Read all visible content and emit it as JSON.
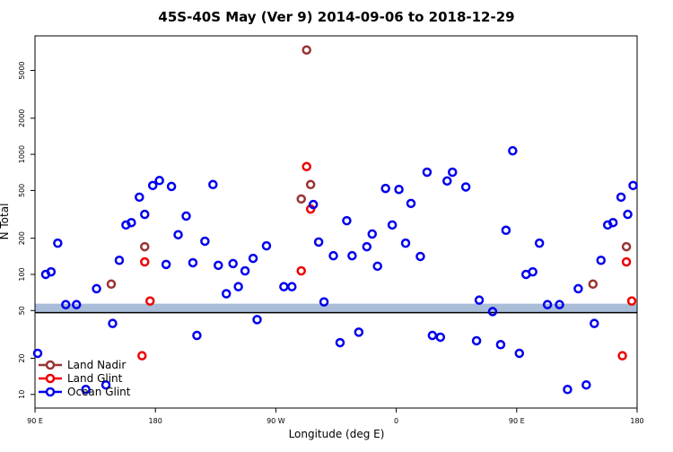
{
  "chart_data": {
    "type": "scatter",
    "title": "45S-40S May (Ver 9)   2014-09-06 to 2018-12-29",
    "x_label": "Longitude (deg E)",
    "y_label": "N Total",
    "xlim": [
      90,
      540
    ],
    "ylim": [
      7.7,
      9700
    ],
    "log_y": true,
    "xticks": [
      {
        "value": 90,
        "label": "90 E"
      },
      {
        "value": 180,
        "label": "180"
      },
      {
        "value": 270,
        "label": "90 W"
      },
      {
        "value": 360,
        "label": "0"
      },
      {
        "value": 450,
        "label": "90 E"
      },
      {
        "value": 540,
        "label": "180"
      }
    ],
    "yticks": [
      10,
      20,
      50,
      100,
      200,
      500,
      1000,
      2000,
      5000
    ],
    "band": [
      48,
      57
    ],
    "band_color": "#a9bcd8",
    "legend": "bottom-left",
    "series": [
      {
        "name": "Land Nadir",
        "color": "#993333",
        "x": [
          147,
          172,
          289,
          293,
          296,
          507,
          532
        ],
        "values": [
          83,
          170,
          425,
          7400,
          560,
          83,
          170
        ]
      },
      {
        "name": "Land Glint",
        "color": "#ee0000",
        "x": [
          170,
          172,
          176,
          289,
          293,
          296,
          529,
          532,
          536
        ],
        "values": [
          21,
          127,
          60,
          107,
          790,
          350,
          21,
          127,
          60
        ]
      },
      {
        "name": "Ocean Glint",
        "color": "#0000ee",
        "x": [
          92,
          98,
          102,
          107,
          113,
          121,
          128,
          136,
          143,
          148,
          153,
          158,
          162,
          168,
          172,
          178,
          183,
          188,
          192,
          197,
          203,
          208,
          211,
          217,
          223,
          227,
          233,
          238,
          242,
          247,
          253,
          256,
          263,
          276,
          282,
          298,
          302,
          306,
          313,
          318,
          323,
          327,
          332,
          338,
          342,
          346,
          352,
          357,
          362,
          367,
          371,
          378,
          383,
          387,
          393,
          398,
          402,
          412,
          420,
          422,
          432,
          438,
          442,
          447,
          452,
          457,
          462,
          467,
          473,
          482,
          488,
          496,
          502,
          508,
          513,
          518,
          522,
          528,
          533,
          537
        ],
        "values": [
          22,
          100,
          105,
          182,
          56,
          56,
          11,
          76,
          12,
          39,
          131,
          258,
          270,
          440,
          316,
          550,
          605,
          121,
          540,
          214,
          306,
          125,
          31,
          189,
          560,
          119,
          69,
          123,
          79,
          107,
          136,
          42,
          173,
          79,
          79,
          382,
          186,
          59,
          143,
          27,
          280,
          143,
          33,
          170,
          217,
          117,
          520,
          258,
          510,
          182,
          390,
          141,
          710,
          31,
          30,
          600,
          710,
          535,
          28,
          61,
          49,
          26,
          233,
          1070,
          22,
          100,
          105,
          182,
          56,
          56,
          11,
          76,
          12,
          39,
          131,
          258,
          270,
          440,
          316,
          550
        ]
      }
    ]
  }
}
